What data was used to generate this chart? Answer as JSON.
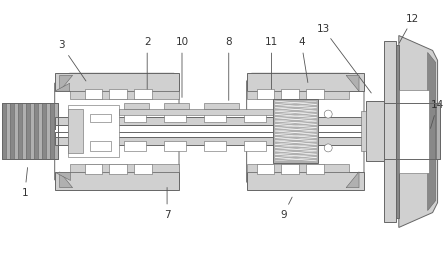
{
  "background_color": "#ffffff",
  "line_color": "#666666",
  "light_gray": "#d0d0d0",
  "mid_gray": "#b0b0b0",
  "dark_gray": "#888888",
  "very_dark": "#606060",
  "label_color": "#333333",
  "figsize": [
    4.44,
    2.63
  ],
  "dpi": 100
}
